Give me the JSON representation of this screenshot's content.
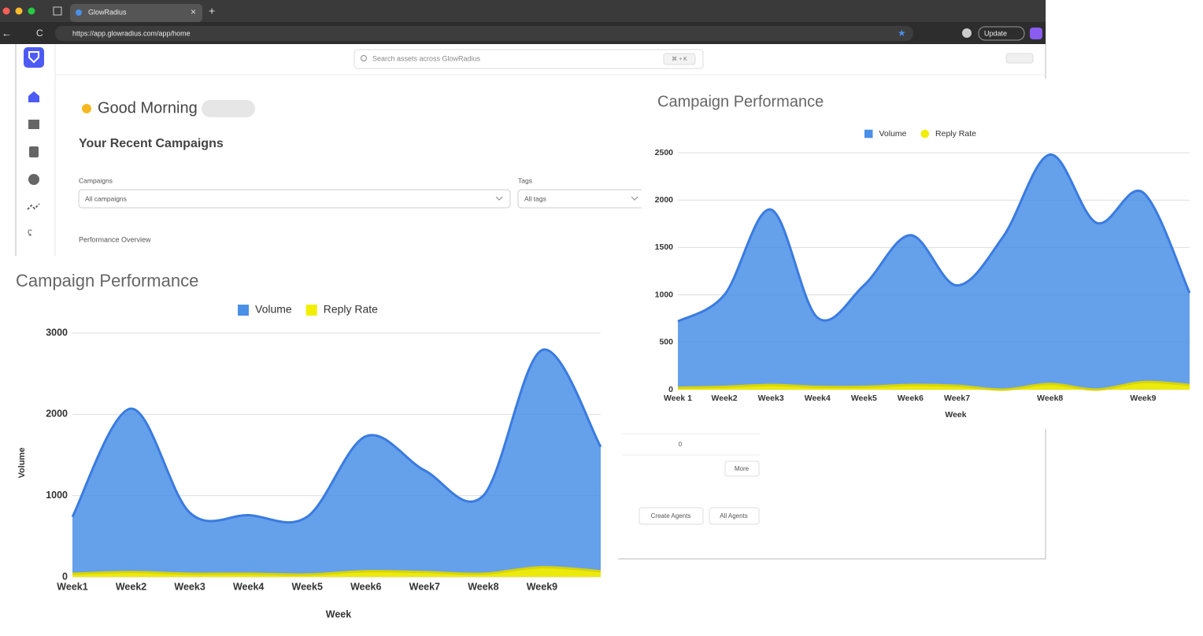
{
  "browser": {
    "tab_title": "GlowRadius",
    "url": "https://app.glowradius.com/app/home",
    "update": "Update"
  },
  "app": {
    "search_placeholder": "Search assets across GlowRadius",
    "shortcut": "⌘ + K",
    "greeting": "Good Morning",
    "recent_title": "Your Recent Campaigns",
    "campaigns_label": "Campaigns",
    "campaigns_value": "All campaigns",
    "tags_label": "Tags",
    "tags_value": "All tags",
    "overview": "Performance Overview",
    "zero": "0",
    "more": "More",
    "create_agents": "Create Agents",
    "all_agents": "All Agents"
  },
  "chart_data": [
    {
      "type": "area",
      "title": "Campaign Performance",
      "x_label": "Week",
      "categories": [
        "Week 1",
        "Week2",
        "Week3",
        "Week4",
        "Week5",
        "Week6",
        "Week7",
        null,
        "Week8",
        null,
        "Week9",
        null
      ],
      "series": [
        {
          "name": "Volume",
          "color": "#4a8fe8",
          "legend_marker": "square",
          "values": [
            720,
            1000,
            1900,
            760,
            1100,
            1630,
            1100,
            1620,
            2480,
            1760,
            2080,
            1020
          ]
        },
        {
          "name": "Reply Rate",
          "color": "#f2ee00",
          "legend_marker": "circle",
          "values": [
            20,
            30,
            50,
            30,
            30,
            50,
            40,
            0,
            60,
            0,
            80,
            50
          ]
        }
      ],
      "ylim": [
        0,
        2500
      ],
      "yticks": [
        0,
        500,
        1000,
        1500,
        2000,
        2500
      ],
      "grid": true
    },
    {
      "type": "area",
      "title": "Campaign Performance",
      "x_label": "Week",
      "y_label": "Volume",
      "categories": [
        "Week1",
        "Week2",
        "Week3",
        "Week4",
        "Week5",
        "Week6",
        "Week7",
        "Week8",
        "Week9",
        null
      ],
      "series": [
        {
          "name": "Volume",
          "color": "#4a8fe8",
          "legend_marker": "square",
          "values": [
            740,
            2070,
            790,
            760,
            740,
            1730,
            1310,
            1000,
            2790,
            1600
          ]
        },
        {
          "name": "Reply Rate",
          "color": "#f2ee00",
          "legend_marker": "square",
          "values": [
            40,
            60,
            40,
            40,
            30,
            70,
            60,
            40,
            120,
            70
          ]
        }
      ],
      "ylim": [
        0,
        3000
      ],
      "yticks": [
        0,
        1000,
        2000,
        3000
      ],
      "grid": true
    }
  ]
}
